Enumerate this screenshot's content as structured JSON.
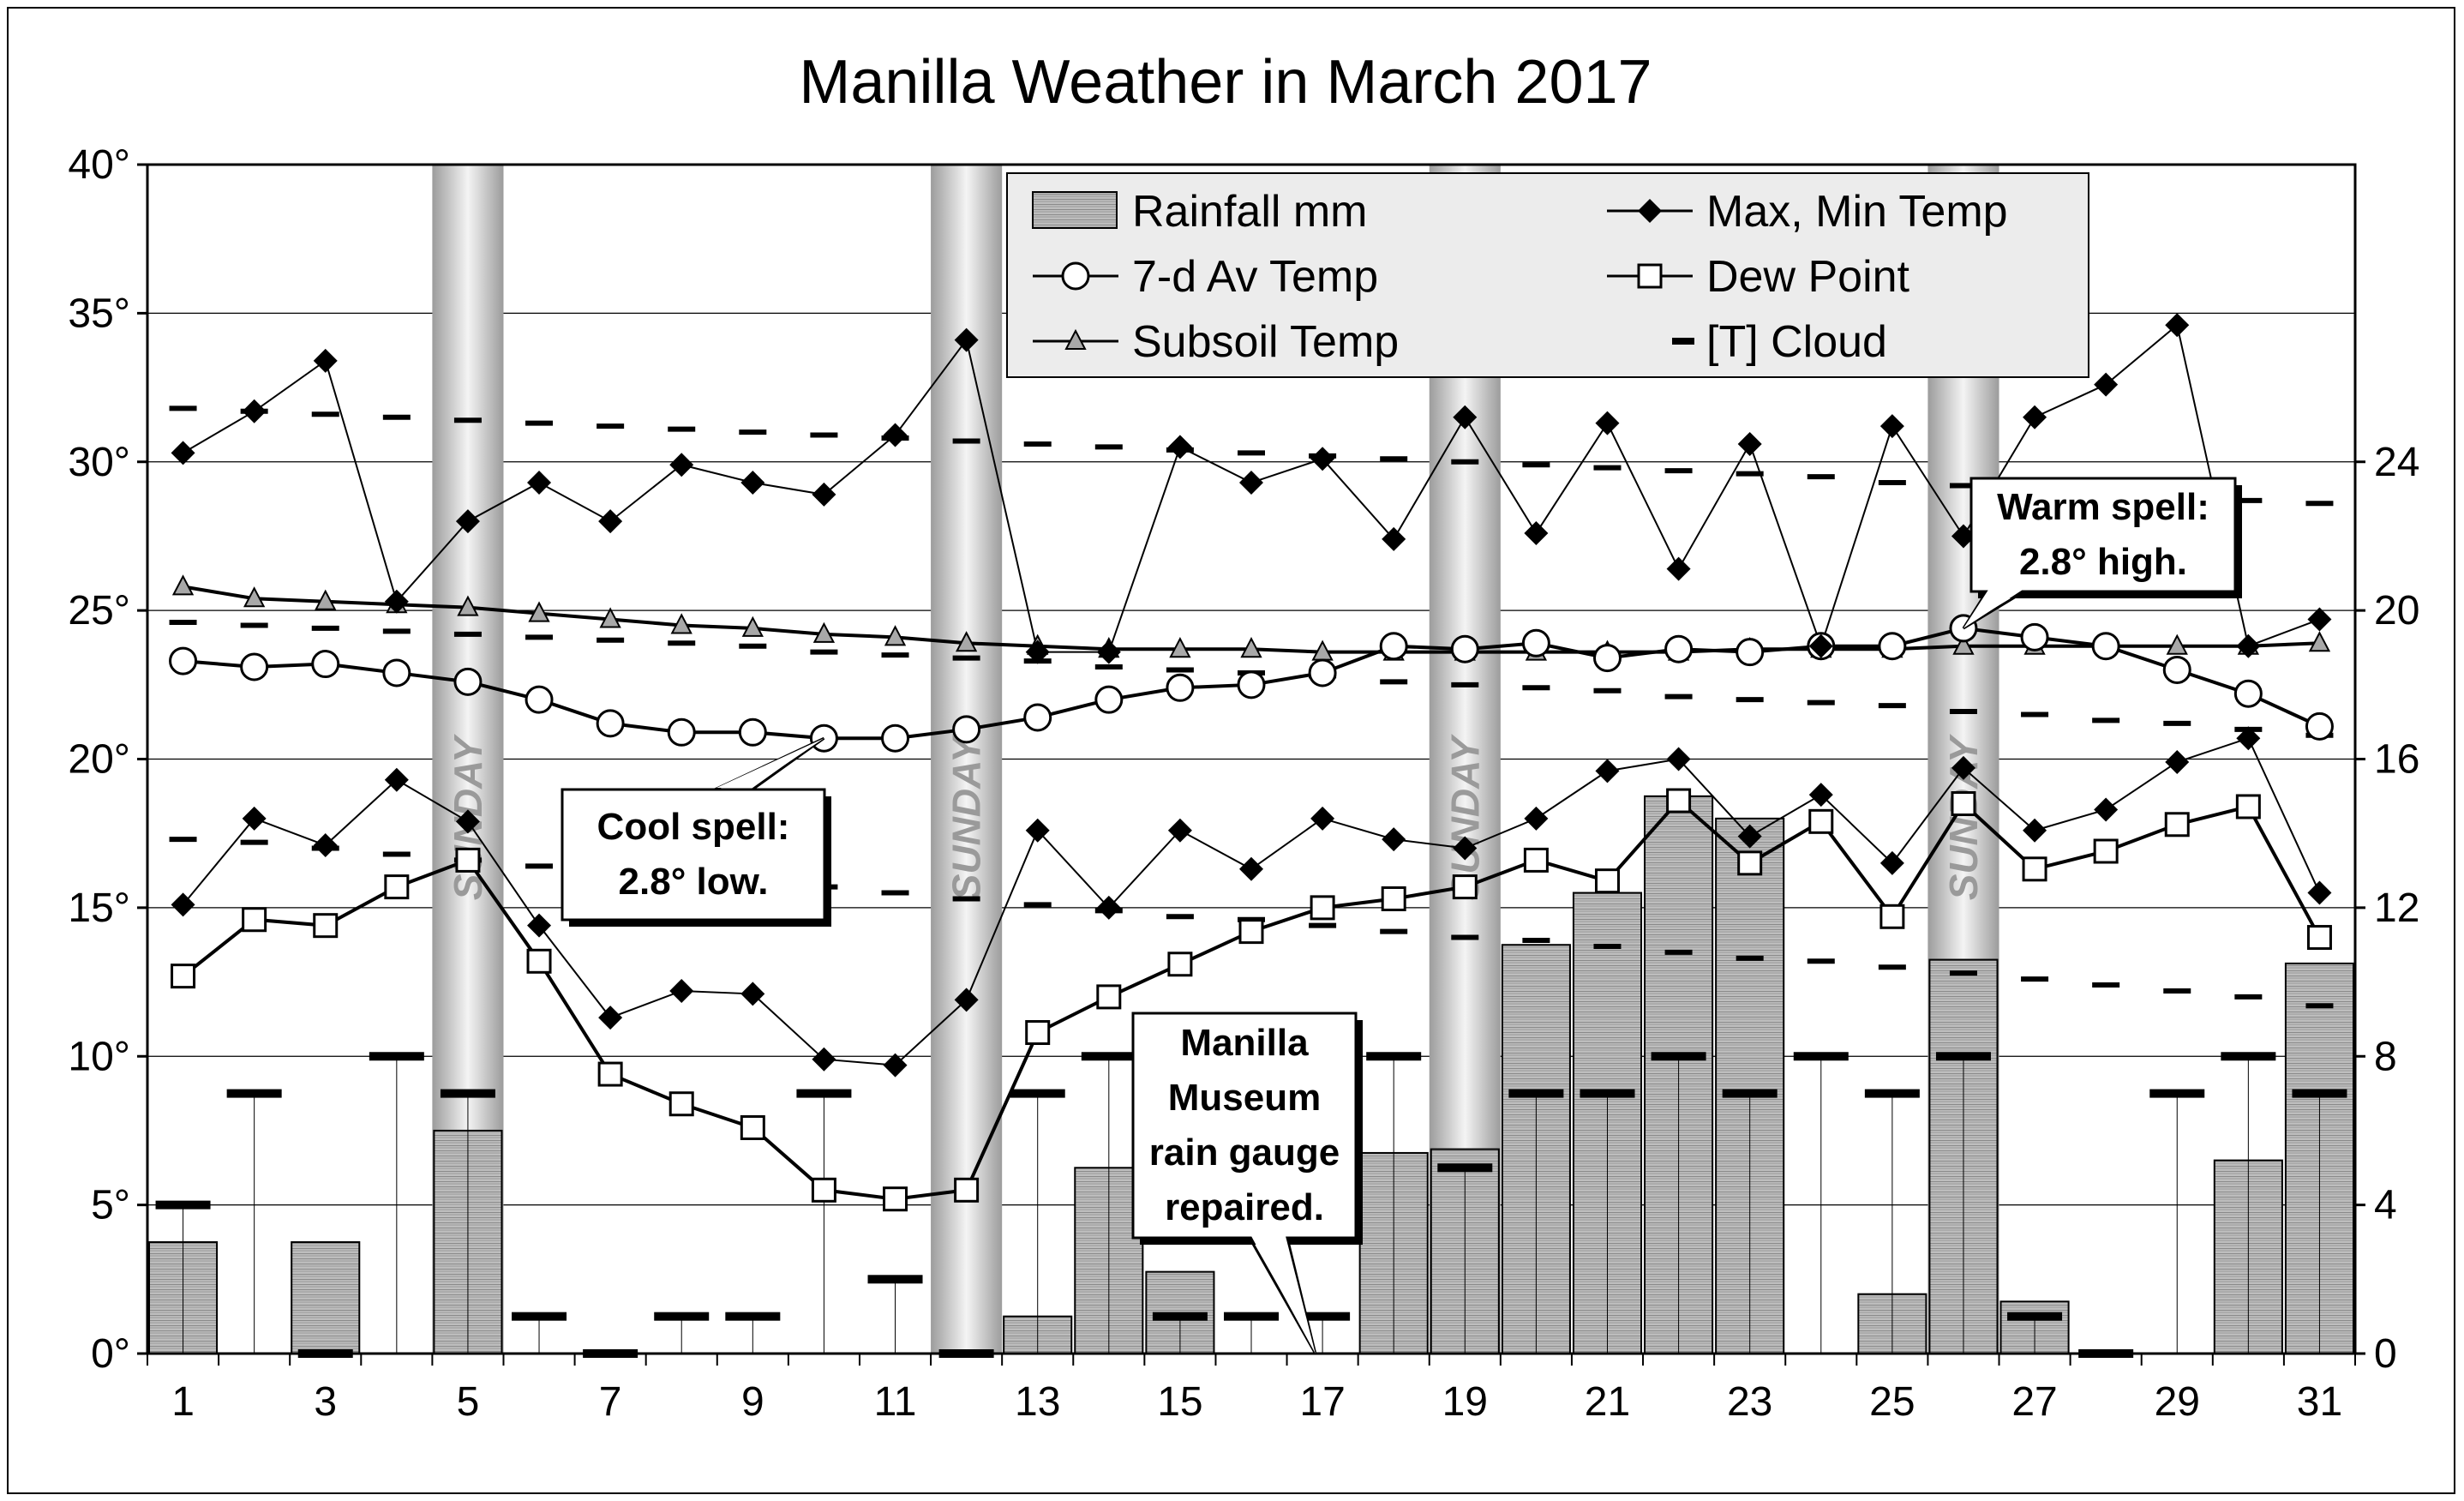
{
  "chart_data": {
    "type": "bar",
    "title": "Manilla Weather in March 2017",
    "x": [
      1,
      2,
      3,
      4,
      5,
      6,
      7,
      8,
      9,
      10,
      11,
      12,
      13,
      14,
      15,
      16,
      17,
      18,
      19,
      20,
      21,
      22,
      23,
      24,
      25,
      26,
      27,
      28,
      29,
      30,
      31
    ],
    "x_tick_labels": [
      "1",
      "3",
      "5",
      "7",
      "9",
      "11",
      "13",
      "15",
      "17",
      "19",
      "21",
      "23",
      "25",
      "27",
      "29",
      "31"
    ],
    "y_left": {
      "ylim": [
        0,
        40
      ],
      "tick_labels": [
        "0°",
        "5°",
        "10°",
        "15°",
        "20°",
        "25°",
        "30°",
        "35°",
        "40°"
      ]
    },
    "y_right": {
      "ylim": [
        0,
        32
      ],
      "tick_labels": [
        "0",
        "4",
        "8",
        "12",
        "16",
        "20",
        "24"
      ]
    },
    "sunday_days": [
      5,
      12,
      19,
      26
    ],
    "sunday_label": "SUNDAY",
    "series": [
      {
        "name": "Rainfall mm",
        "kind": "bar",
        "axis": "right",
        "values": [
          3.0,
          0,
          3.0,
          0,
          6.0,
          0,
          0,
          0,
          0,
          0,
          0,
          0,
          1.0,
          5.0,
          2.2,
          0,
          0,
          5.4,
          5.5,
          11.0,
          12.4,
          15.0,
          14.4,
          0,
          1.6,
          10.6,
          1.4,
          0,
          0,
          5.2,
          10.5
        ]
      },
      {
        "name": "Max, Min Temp",
        "kind": "line",
        "axis": "left",
        "sub": "max",
        "values": [
          30.3,
          31.7,
          33.4,
          25.3,
          28.0,
          29.3,
          28.0,
          29.9,
          29.3,
          28.9,
          30.9,
          34.1,
          23.6,
          23.6,
          30.5,
          29.3,
          30.1,
          27.4,
          31.5,
          27.6,
          31.3,
          26.4,
          30.6,
          23.8,
          31.2,
          27.5,
          31.5,
          32.6,
          34.6,
          23.8,
          24.7
        ]
      },
      {
        "name": "Max, Min Temp",
        "kind": "line",
        "axis": "left",
        "sub": "min",
        "values": [
          15.1,
          18.0,
          17.1,
          19.3,
          17.9,
          14.4,
          11.3,
          12.2,
          12.1,
          9.9,
          9.7,
          11.9,
          17.6,
          15.0,
          17.6,
          16.3,
          18.0,
          17.3,
          17.0,
          18.0,
          19.6,
          20.0,
          17.4,
          18.8,
          16.5,
          19.7,
          17.6,
          18.3,
          19.9,
          20.7,
          15.5
        ]
      },
      {
        "name": "7-d Av Temp",
        "kind": "line",
        "axis": "left",
        "values": [
          23.3,
          23.1,
          23.2,
          22.9,
          22.6,
          22.0,
          21.2,
          20.9,
          20.9,
          20.7,
          20.7,
          21.0,
          21.4,
          22.0,
          22.4,
          22.5,
          22.9,
          23.8,
          23.7,
          23.9,
          23.4,
          23.7,
          23.6,
          23.8,
          23.8,
          24.4,
          24.1,
          23.8,
          23.0,
          22.2,
          21.1
        ]
      },
      {
        "name": "Dew Point",
        "kind": "line",
        "axis": "left",
        "values": [
          12.7,
          14.6,
          14.4,
          15.7,
          16.6,
          13.2,
          9.4,
          8.4,
          7.6,
          5.5,
          5.2,
          5.5,
          10.8,
          12.0,
          13.1,
          14.2,
          15.0,
          15.3,
          15.7,
          16.6,
          15.9,
          18.6,
          16.5,
          17.9,
          14.7,
          18.5,
          16.3,
          16.9,
          17.8,
          18.4,
          14.0
        ]
      },
      {
        "name": "Subsoil Temp",
        "kind": "line",
        "axis": "left",
        "values": [
          25.8,
          25.4,
          25.3,
          25.2,
          25.1,
          24.9,
          24.7,
          24.5,
          24.4,
          24.2,
          24.1,
          23.9,
          23.8,
          23.7,
          23.7,
          23.7,
          23.6,
          23.6,
          23.6,
          23.6,
          23.6,
          23.6,
          23.7,
          23.7,
          23.7,
          23.8,
          23.8,
          23.8,
          23.8,
          23.8,
          23.9
        ]
      },
      {
        "name": "[T] Cloud",
        "kind": "dash",
        "axis": "right",
        "values": [
          4,
          7,
          0,
          8,
          7,
          1,
          0,
          1,
          1,
          7,
          2,
          0,
          7,
          8,
          1,
          1,
          1,
          8,
          5,
          7,
          7,
          8,
          7,
          8,
          7,
          8,
          1,
          0,
          7,
          8,
          7
        ]
      }
    ],
    "normals": {
      "max": [
        31.8,
        31.7,
        31.6,
        31.5,
        31.4,
        31.3,
        31.2,
        31.1,
        31.0,
        30.9,
        30.8,
        30.7,
        30.6,
        30.5,
        30.4,
        30.3,
        30.2,
        30.1,
        30.0,
        29.9,
        29.8,
        29.7,
        29.6,
        29.5,
        29.3,
        29.2,
        29.0,
        28.9,
        28.8,
        28.7,
        28.6
      ],
      "mean": [
        24.6,
        24.5,
        24.4,
        24.3,
        24.2,
        24.1,
        24.0,
        23.9,
        23.8,
        23.6,
        23.5,
        23.4,
        23.3,
        23.1,
        23.0,
        22.9,
        22.8,
        22.6,
        22.5,
        22.4,
        22.3,
        22.1,
        22.0,
        21.9,
        21.8,
        21.6,
        21.5,
        21.3,
        21.2,
        21.0,
        20.8
      ],
      "min": [
        17.3,
        17.2,
        17.0,
        16.8,
        16.6,
        16.4,
        16.2,
        16.0,
        15.8,
        15.7,
        15.5,
        15.3,
        15.1,
        14.9,
        14.7,
        14.6,
        14.4,
        14.2,
        14.0,
        13.9,
        13.7,
        13.5,
        13.3,
        13.2,
        13.0,
        12.8,
        12.6,
        12.4,
        12.2,
        12.0,
        11.7
      ]
    },
    "legend": {
      "placement": "top-center",
      "items": [
        {
          "label": "Rainfall mm",
          "symbol": "hatched-bar"
        },
        {
          "label": "Max, Min Temp",
          "symbol": "diamond-line"
        },
        {
          "label": "7-d Av Temp",
          "symbol": "circle-line"
        },
        {
          "label": "Dew Point",
          "symbol": "square-line"
        },
        {
          "label": "Subsoil Temp",
          "symbol": "triangle-line"
        },
        {
          "label": "[T] Cloud",
          "symbol": "dash"
        }
      ]
    },
    "annotations": [
      {
        "id": "cool",
        "lines": [
          "Cool spell:",
          "2.8° low."
        ],
        "day": 10,
        "value": 20.7
      },
      {
        "id": "warm",
        "lines": [
          "Warm spell:",
          "2.8° high."
        ],
        "day": 26,
        "value": 24.4
      },
      {
        "id": "museum",
        "lines": [
          "Manilla",
          "Museum",
          "rain gauge",
          "repaired."
        ],
        "day": 16.9,
        "value": 0
      }
    ],
    "grid": true
  }
}
